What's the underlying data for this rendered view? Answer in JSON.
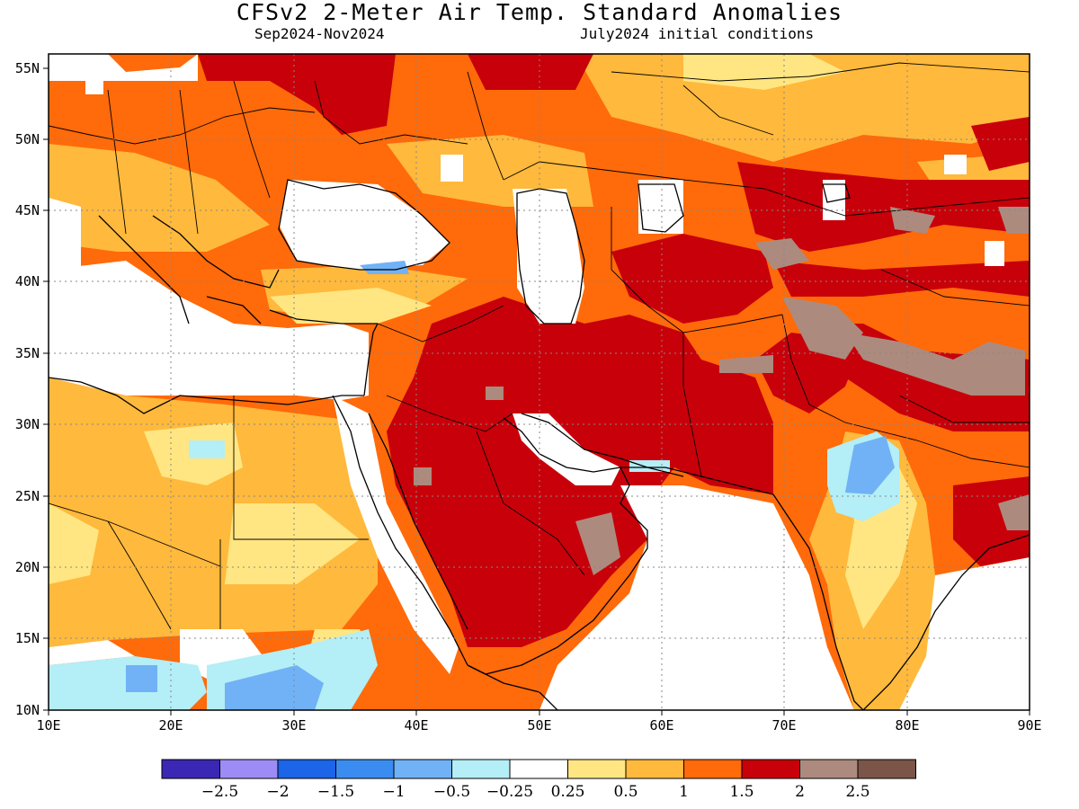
{
  "title": "CFSv2 2-Meter Air Temp. Standard Anomalies",
  "subtitle_left": "Sep2024-Nov2024",
  "subtitle_right": "July2024 initial conditions",
  "map": {
    "lon_range": [
      10,
      90
    ],
    "lat_range": [
      10,
      56
    ],
    "x_ticks": [
      "10E",
      "20E",
      "30E",
      "40E",
      "50E",
      "60E",
      "70E",
      "80E",
      "90E"
    ],
    "y_ticks": [
      "55N",
      "50N",
      "45N",
      "40N",
      "35N",
      "30N",
      "25N",
      "20N",
      "15N",
      "10N"
    ],
    "gridlines": "dotted"
  },
  "colorbar": {
    "colors": [
      "#3a27b4",
      "#9d8cf6",
      "#1c64e8",
      "#3a8cf0",
      "#70b2f5",
      "#b4eef7",
      "#ffffff",
      "#ffe682",
      "#ffb93c",
      "#ff6a0a",
      "#c8000a",
      "#ad8a7e",
      "#7a5548"
    ],
    "labels": [
      "-2.5",
      "-2",
      "-1.5",
      "-1",
      "-0.5",
      "-0.25",
      "0.25",
      "0.5",
      "1",
      "1.5",
      "2",
      "2.5"
    ]
  },
  "colors": {
    "weak_warm": "#ffe682",
    "moderate_warm": "#ffb93c",
    "warm": "#ff6a0a",
    "strong_warm": "#c8000a",
    "extreme_warm": "#ad8a7e",
    "weak_cool": "#b4eef7",
    "cool": "#70b2f5",
    "strong_cool": "#3a8cf0"
  }
}
